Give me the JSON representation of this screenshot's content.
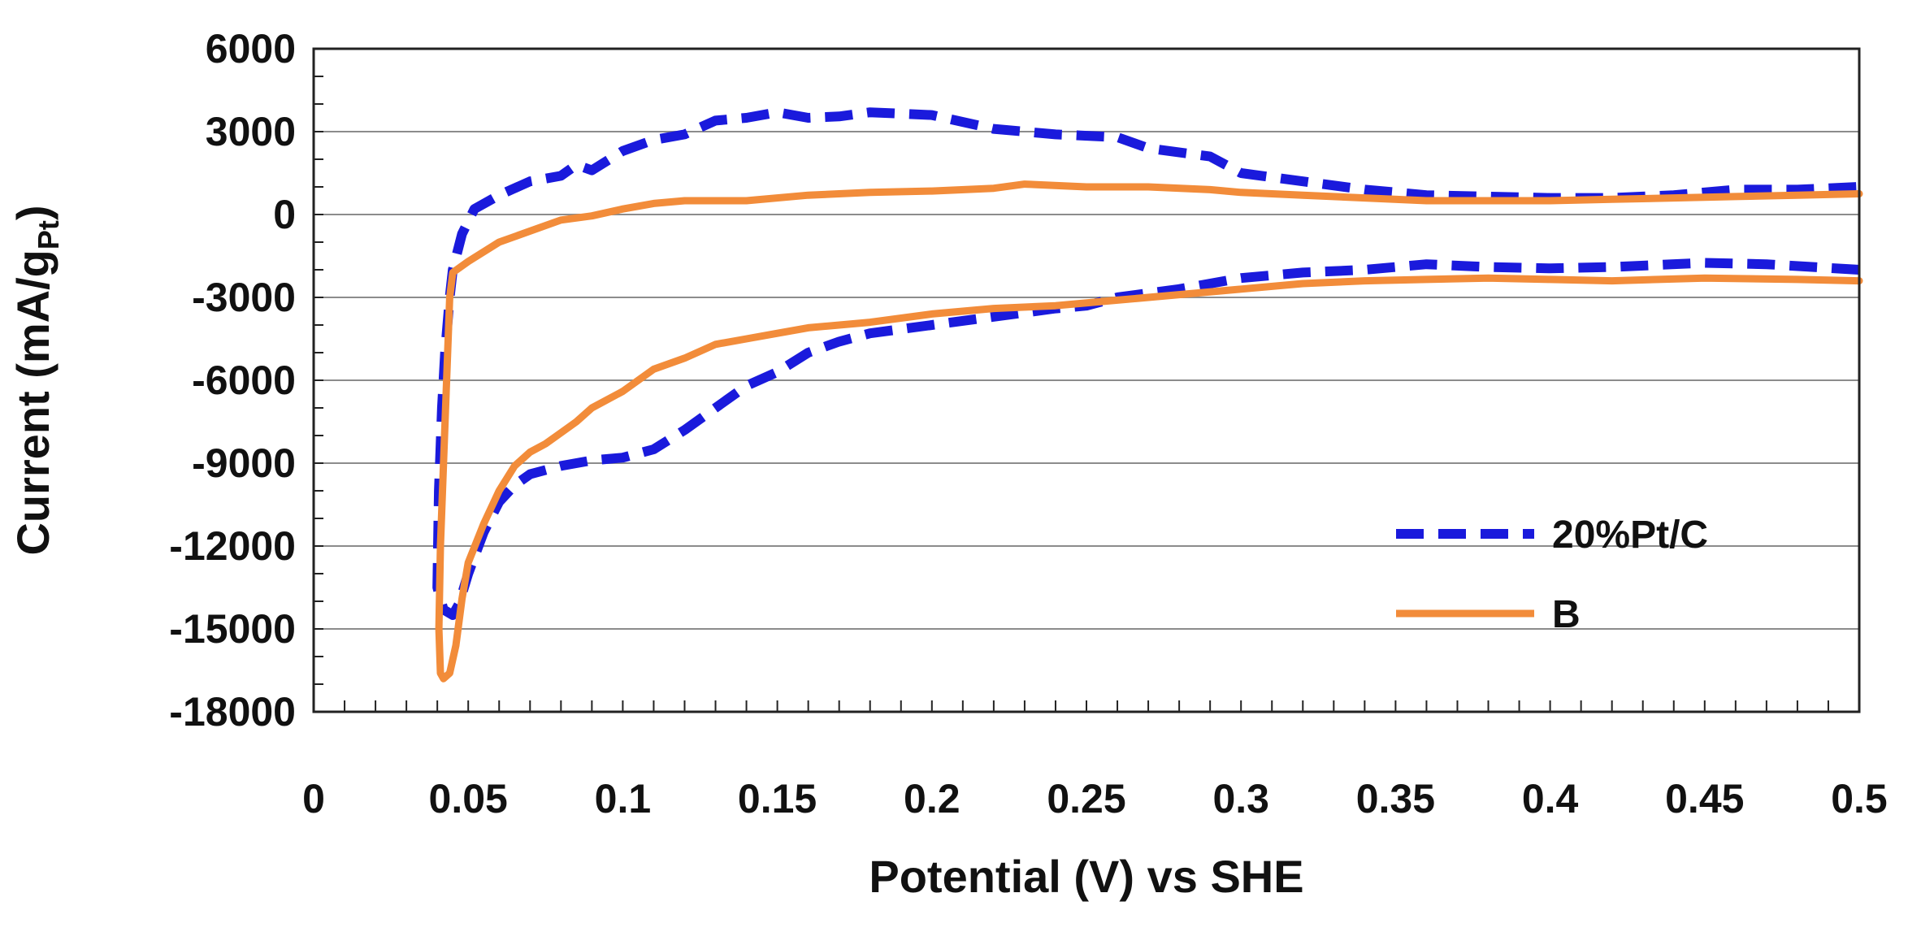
{
  "chart_data": {
    "type": "line",
    "title": "",
    "xlabel": "Potential (V) vs SHE",
    "ylabel_main": "Current (mA/g",
    "ylabel_sub": "Pt",
    "ylabel_close": ")",
    "xlim": [
      0,
      0.5
    ],
    "ylim": [
      -18000,
      6000
    ],
    "x_ticks": [
      0,
      0.05,
      0.1,
      0.15,
      0.2,
      0.25,
      0.3,
      0.35,
      0.4,
      0.45,
      0.5
    ],
    "x_tick_labels": [
      "0",
      "0.05",
      "0.1",
      "0.15",
      "0.2",
      "0.25",
      "0.3",
      "0.35",
      "0.4",
      "0.45",
      "0.5"
    ],
    "y_ticks": [
      6000,
      3000,
      0,
      -3000,
      -6000,
      -9000,
      -12000,
      -15000,
      -18000
    ],
    "y_tick_labels": [
      "6000",
      "3000",
      "0",
      "-3000",
      "-6000",
      "-9000",
      "-12000",
      "-15000",
      "-18000"
    ],
    "grid": "horizontal",
    "legend_position": "bottom-right",
    "series": [
      {
        "name": "20%Pt/C",
        "color": "#1a1adc",
        "style": "dashed",
        "points": [
          [
            0.5,
            -2000
          ],
          [
            0.47,
            -1800
          ],
          [
            0.45,
            -1750
          ],
          [
            0.42,
            -1900
          ],
          [
            0.4,
            -1950
          ],
          [
            0.38,
            -1900
          ],
          [
            0.36,
            -1800
          ],
          [
            0.34,
            -2000
          ],
          [
            0.32,
            -2100
          ],
          [
            0.3,
            -2300
          ],
          [
            0.28,
            -2700
          ],
          [
            0.26,
            -3000
          ],
          [
            0.25,
            -3300
          ],
          [
            0.24,
            -3400
          ],
          [
            0.22,
            -3700
          ],
          [
            0.2,
            -4000
          ],
          [
            0.18,
            -4300
          ],
          [
            0.17,
            -4600
          ],
          [
            0.16,
            -5000
          ],
          [
            0.15,
            -5700
          ],
          [
            0.14,
            -6200
          ],
          [
            0.13,
            -7000
          ],
          [
            0.12,
            -7800
          ],
          [
            0.11,
            -8500
          ],
          [
            0.1,
            -8800
          ],
          [
            0.09,
            -8900
          ],
          [
            0.08,
            -9100
          ],
          [
            0.07,
            -9400
          ],
          [
            0.065,
            -9800
          ],
          [
            0.06,
            -10400
          ],
          [
            0.055,
            -11500
          ],
          [
            0.05,
            -13000
          ],
          [
            0.047,
            -14100
          ],
          [
            0.045,
            -14500
          ],
          [
            0.042,
            -14300
          ],
          [
            0.04,
            -13500
          ],
          [
            0.0405,
            -10000
          ],
          [
            0.0415,
            -7000
          ],
          [
            0.0425,
            -5000
          ],
          [
            0.044,
            -3000
          ],
          [
            0.045,
            -2000
          ],
          [
            0.048,
            -700
          ],
          [
            0.052,
            200
          ],
          [
            0.06,
            700
          ],
          [
            0.07,
            1200
          ],
          [
            0.08,
            1400
          ],
          [
            0.085,
            1800
          ],
          [
            0.09,
            1600
          ],
          [
            0.1,
            2300
          ],
          [
            0.11,
            2700
          ],
          [
            0.12,
            2900
          ],
          [
            0.13,
            3400
          ],
          [
            0.14,
            3500
          ],
          [
            0.15,
            3700
          ],
          [
            0.16,
            3500
          ],
          [
            0.17,
            3550
          ],
          [
            0.18,
            3700
          ],
          [
            0.19,
            3650
          ],
          [
            0.2,
            3600
          ],
          [
            0.22,
            3100
          ],
          [
            0.24,
            2900
          ],
          [
            0.26,
            2800
          ],
          [
            0.27,
            2400
          ],
          [
            0.29,
            2100
          ],
          [
            0.3,
            1500
          ],
          [
            0.32,
            1200
          ],
          [
            0.34,
            900
          ],
          [
            0.36,
            700
          ],
          [
            0.38,
            650
          ],
          [
            0.4,
            600
          ],
          [
            0.42,
            600
          ],
          [
            0.44,
            700
          ],
          [
            0.46,
            900
          ],
          [
            0.48,
            900
          ],
          [
            0.5,
            1000
          ]
        ]
      },
      {
        "name": "B",
        "color": "#f28c3a",
        "style": "solid",
        "points": [
          [
            0.5,
            -2400
          ],
          [
            0.48,
            -2350
          ],
          [
            0.45,
            -2300
          ],
          [
            0.42,
            -2400
          ],
          [
            0.4,
            -2350
          ],
          [
            0.38,
            -2300
          ],
          [
            0.36,
            -2350
          ],
          [
            0.34,
            -2400
          ],
          [
            0.32,
            -2500
          ],
          [
            0.3,
            -2700
          ],
          [
            0.28,
            -2900
          ],
          [
            0.26,
            -3100
          ],
          [
            0.24,
            -3300
          ],
          [
            0.22,
            -3400
          ],
          [
            0.2,
            -3600
          ],
          [
            0.18,
            -3900
          ],
          [
            0.16,
            -4100
          ],
          [
            0.15,
            -4300
          ],
          [
            0.14,
            -4500
          ],
          [
            0.13,
            -4700
          ],
          [
            0.12,
            -5200
          ],
          [
            0.11,
            -5600
          ],
          [
            0.1,
            -6400
          ],
          [
            0.09,
            -7000
          ],
          [
            0.085,
            -7500
          ],
          [
            0.08,
            -7900
          ],
          [
            0.075,
            -8300
          ],
          [
            0.07,
            -8600
          ],
          [
            0.065,
            -9100
          ],
          [
            0.06,
            -10000
          ],
          [
            0.055,
            -11200
          ],
          [
            0.05,
            -12600
          ],
          [
            0.048,
            -13900
          ],
          [
            0.046,
            -15600
          ],
          [
            0.044,
            -16600
          ],
          [
            0.042,
            -16800
          ],
          [
            0.041,
            -16600
          ],
          [
            0.0405,
            -15000
          ],
          [
            0.041,
            -12000
          ],
          [
            0.042,
            -9000
          ],
          [
            0.043,
            -6000
          ],
          [
            0.044,
            -3000
          ],
          [
            0.045,
            -2100
          ],
          [
            0.05,
            -1700
          ],
          [
            0.06,
            -1000
          ],
          [
            0.07,
            -600
          ],
          [
            0.08,
            -200
          ],
          [
            0.09,
            -50
          ],
          [
            0.1,
            200
          ],
          [
            0.11,
            400
          ],
          [
            0.12,
            500
          ],
          [
            0.13,
            500
          ],
          [
            0.14,
            500
          ],
          [
            0.16,
            700
          ],
          [
            0.18,
            800
          ],
          [
            0.2,
            850
          ],
          [
            0.22,
            950
          ],
          [
            0.23,
            1100
          ],
          [
            0.25,
            1000
          ],
          [
            0.27,
            1000
          ],
          [
            0.29,
            900
          ],
          [
            0.3,
            800
          ],
          [
            0.32,
            700
          ],
          [
            0.34,
            600
          ],
          [
            0.36,
            500
          ],
          [
            0.38,
            500
          ],
          [
            0.4,
            500
          ],
          [
            0.42,
            550
          ],
          [
            0.44,
            600
          ],
          [
            0.46,
            650
          ],
          [
            0.48,
            700
          ],
          [
            0.5,
            750
          ]
        ]
      }
    ]
  }
}
